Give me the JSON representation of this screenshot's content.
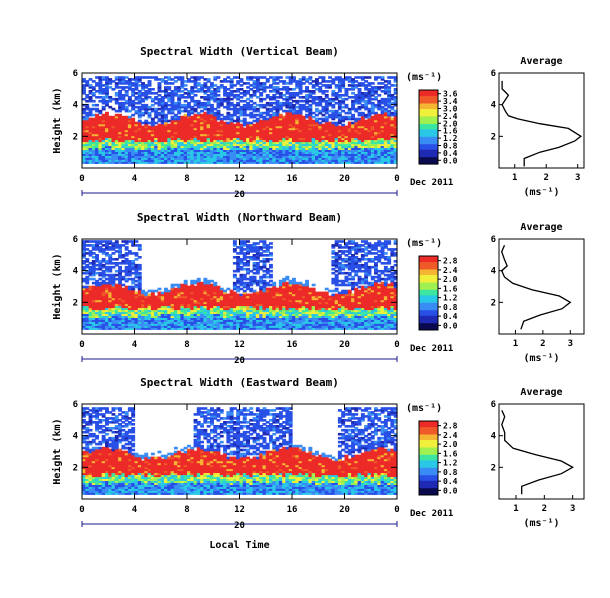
{
  "chart_data": [
    {
      "type": "heatmap",
      "title": "Spectral Width (Vertical Beam)",
      "ylabel": "Height (km)",
      "xticks": [
        "0",
        "4",
        "8",
        "12",
        "16",
        "20",
        "0"
      ],
      "yticks": [
        "2",
        "4",
        "6"
      ],
      "xlim": [
        0,
        24
      ],
      "ylim": [
        0,
        6
      ],
      "date_label": "Dec 2011",
      "date_tick": "20",
      "colorbar": {
        "unit": "(ms⁻¹)",
        "ticks": [
          "3.6",
          "3.4",
          "3.0",
          "2.4",
          "2.0",
          "1.6",
          "1.2",
          "0.8",
          "0.4",
          "0.0"
        ],
        "range": [
          0,
          3.6
        ]
      },
      "layers": {
        "low_top_km": 1.2,
        "main_top_km": 3.0,
        "scatter_top_km": 5.7
      },
      "gaps": [],
      "average": {
        "title": "Average",
        "xlabel": "(ms⁻¹)",
        "xticks": [
          "1",
          "2",
          "3"
        ],
        "yticks": [
          "2",
          "4",
          "6"
        ],
        "xlim": [
          0.5,
          3.2
        ],
        "ylim": [
          0,
          6
        ],
        "profile": [
          [
            1.3,
            0.1
          ],
          [
            1.3,
            0.6
          ],
          [
            1.8,
            1.0
          ],
          [
            2.4,
            1.3
          ],
          [
            2.9,
            1.7
          ],
          [
            3.1,
            2.0
          ],
          [
            2.7,
            2.5
          ],
          [
            1.8,
            2.8
          ],
          [
            1.1,
            3.1
          ],
          [
            0.8,
            3.3
          ],
          [
            0.7,
            3.6
          ],
          [
            0.6,
            4.0
          ],
          [
            0.7,
            4.3
          ],
          [
            0.8,
            4.6
          ],
          [
            0.7,
            4.8
          ],
          [
            0.6,
            5.0
          ],
          [
            0.6,
            5.5
          ]
        ]
      }
    },
    {
      "type": "heatmap",
      "title": "Spectral Width (Northward Beam)",
      "ylabel": "Height (km)",
      "xticks": [
        "0",
        "4",
        "8",
        "12",
        "16",
        "20",
        "0"
      ],
      "yticks": [
        "2",
        "4",
        "6"
      ],
      "xlim": [
        0,
        24
      ],
      "ylim": [
        0,
        6
      ],
      "date_label": "Dec 2011",
      "date_tick": "20",
      "colorbar": {
        "unit": "(ms⁻¹)",
        "ticks": [
          "2.8",
          "2.4",
          "2.0",
          "1.6",
          "1.2",
          "0.8",
          "0.4",
          "0.0"
        ],
        "range": [
          0,
          2.8
        ]
      },
      "layers": {
        "low_top_km": 1.1,
        "main_top_km": 2.8,
        "scatter_top_km": 5.9
      },
      "gaps": [
        [
          4.5,
          11.5
        ],
        [
          14.5,
          19.0
        ]
      ],
      "average": {
        "title": "Average",
        "xlabel": "(ms⁻¹)",
        "xticks": [
          "1",
          "2",
          "3"
        ],
        "yticks": [
          "2",
          "4",
          "6"
        ],
        "xlim": [
          0.4,
          3.5
        ],
        "ylim": [
          0,
          6
        ],
        "profile": [
          [
            1.2,
            0.3
          ],
          [
            1.3,
            0.8
          ],
          [
            1.9,
            1.2
          ],
          [
            2.7,
            1.6
          ],
          [
            3.0,
            2.0
          ],
          [
            2.6,
            2.4
          ],
          [
            1.6,
            2.8
          ],
          [
            0.9,
            3.2
          ],
          [
            0.6,
            3.6
          ],
          [
            0.5,
            4.0
          ],
          [
            0.7,
            4.3
          ],
          [
            0.6,
            4.7
          ],
          [
            0.5,
            5.2
          ],
          [
            0.6,
            5.6
          ]
        ]
      }
    },
    {
      "type": "heatmap",
      "title": "Spectral Width (Eastward Beam)",
      "ylabel": "Height (km)",
      "xticks": [
        "0",
        "4",
        "8",
        "12",
        "16",
        "20",
        "0"
      ],
      "yticks": [
        "2",
        "4",
        "6"
      ],
      "xlim": [
        0,
        24
      ],
      "ylim": [
        0,
        6
      ],
      "date_label": "Dec 2011",
      "date_tick": "20",
      "colorbar": {
        "unit": "(ms⁻¹)",
        "ticks": [
          "2.8",
          "2.4",
          "2.0",
          "1.6",
          "1.2",
          "0.8",
          "0.4",
          "0.0"
        ],
        "range": [
          0,
          2.8
        ]
      },
      "layers": {
        "low_top_km": 1.0,
        "main_top_km": 2.8,
        "scatter_top_km": 5.8
      },
      "gaps": [
        [
          4.0,
          8.5
        ],
        [
          16.0,
          19.5
        ]
      ],
      "average": {
        "title": "Average",
        "xlabel": "(ms⁻¹)",
        "xticks": [
          "1",
          "2",
          "3"
        ],
        "yticks": [
          "2",
          "4",
          "6"
        ],
        "xlim": [
          0.4,
          3.4
        ],
        "ylim": [
          0,
          6
        ],
        "profile": [
          [
            1.2,
            0.3
          ],
          [
            1.2,
            0.8
          ],
          [
            1.8,
            1.2
          ],
          [
            2.6,
            1.6
          ],
          [
            3.0,
            2.0
          ],
          [
            2.6,
            2.4
          ],
          [
            1.7,
            2.8
          ],
          [
            0.9,
            3.2
          ],
          [
            0.6,
            3.7
          ],
          [
            0.6,
            4.2
          ],
          [
            0.5,
            4.7
          ],
          [
            0.6,
            5.2
          ],
          [
            0.5,
            5.6
          ]
        ]
      }
    }
  ],
  "common": {
    "xlabel": "Local Time"
  },
  "colors": [
    "#0a0a50",
    "#1e2ab4",
    "#2850e6",
    "#3a8cf5",
    "#28c8e6",
    "#3ce6a0",
    "#a0f050",
    "#f0f03c",
    "#f5b432",
    "#f05a28",
    "#ec2a28"
  ]
}
